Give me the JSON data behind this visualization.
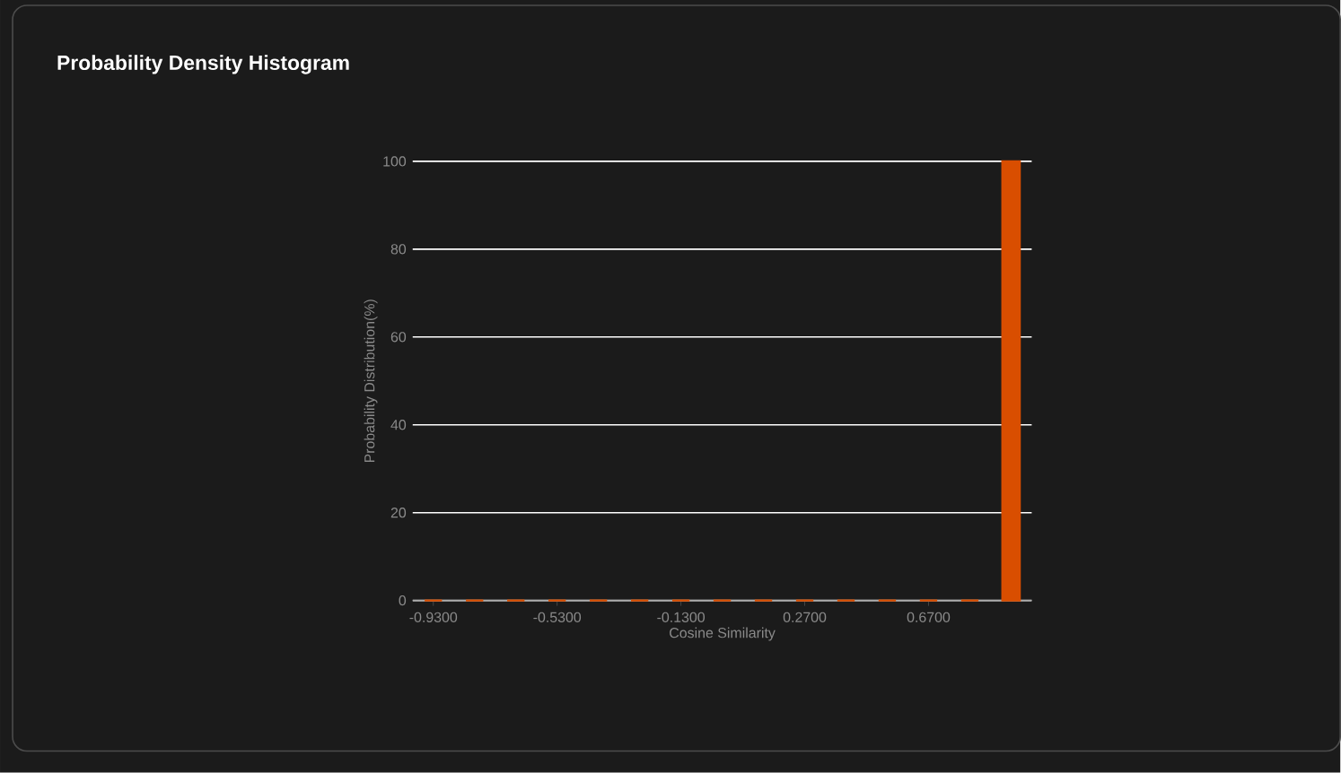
{
  "chart_data": {
    "type": "bar",
    "title": "Probability Density Histogram",
    "xlabel": "Cosine Similarity",
    "ylabel": "Probability Distribution(%)",
    "categories": [
      "-0.9300",
      null,
      null,
      "-0.5300",
      null,
      null,
      "-0.1300",
      null,
      null,
      "0.2700",
      null,
      null,
      "0.6700",
      null,
      null
    ],
    "values": [
      0,
      0,
      0,
      0,
      0,
      0,
      0,
      0,
      0,
      0,
      0,
      0,
      0,
      0,
      100
    ],
    "color": "#d94e00",
    "ylim": [
      0,
      100
    ],
    "yticks": [
      0,
      20,
      40,
      60,
      80,
      100
    ],
    "grid": "y"
  }
}
